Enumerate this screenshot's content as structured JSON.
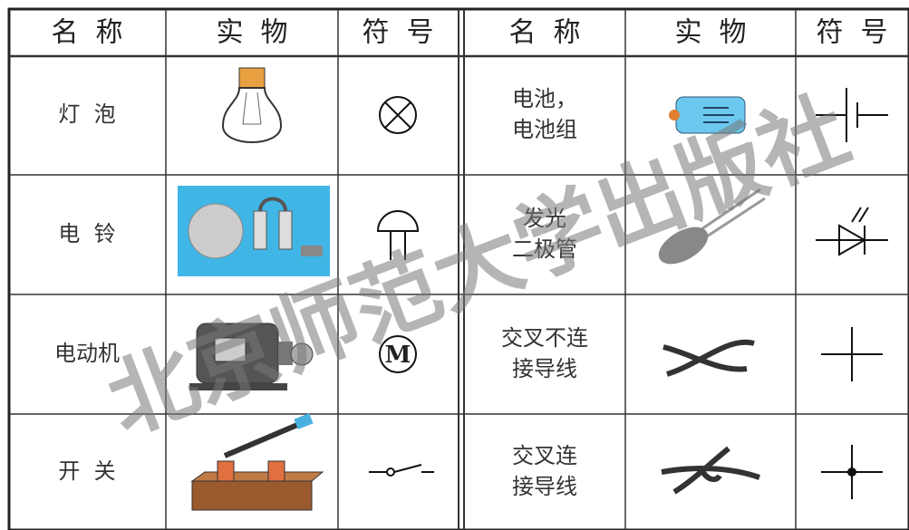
{
  "table": {
    "header": [
      "名  称",
      "实  物",
      "符  号",
      "名  称",
      "实  物",
      "符  号"
    ],
    "rows": [
      {
        "left_name": [
          "灯  泡"
        ],
        "right_name": [
          "电池，",
          "电池组"
        ]
      },
      {
        "left_name": [
          "电  铃"
        ],
        "right_name": [
          "发光",
          "二极管"
        ]
      },
      {
        "left_name": [
          "电动机"
        ],
        "right_name": [
          "交叉不连",
          "接导线"
        ]
      },
      {
        "left_name": [
          "开  关"
        ],
        "right_name": [
          "交叉连",
          "接导线"
        ]
      }
    ]
  },
  "motor_symbol": "M",
  "watermark": "北京师范大学出版社"
}
